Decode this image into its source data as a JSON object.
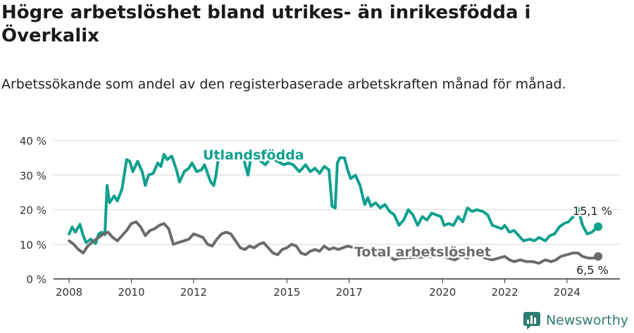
{
  "header": {
    "title": "Högre arbetslöshet bland utrikes- än inrikesfödda i Överkalix",
    "subtitle": "Arbetssökande som andel av den registerbaserade arbetskraften månad för månad."
  },
  "brand": {
    "name": "Newsworthy"
  },
  "colors": {
    "foreign_born": "#0fa08e",
    "total": "#6b6b6b",
    "grid": "#d9d9d9",
    "axis": "#333333",
    "brand": "#2f7d72"
  },
  "chart_data": {
    "type": "line",
    "xlim": [
      2007.5,
      2025.7
    ],
    "ylim": [
      0,
      40
    ],
    "y_ticks": [
      {
        "value": 0,
        "label": "0 %"
      },
      {
        "value": 10,
        "label": "10 %"
      },
      {
        "value": 20,
        "label": "20 %"
      },
      {
        "value": 30,
        "label": "30 %"
      },
      {
        "value": 40,
        "label": "40 %"
      }
    ],
    "x_ticks": [
      {
        "value": 2008,
        "label": "2008"
      },
      {
        "value": 2010,
        "label": "2010"
      },
      {
        "value": 2012,
        "label": "2012"
      },
      {
        "value": 2015,
        "label": "2015"
      },
      {
        "value": 2017,
        "label": "2017"
      },
      {
        "value": 2020,
        "label": "2020"
      },
      {
        "value": 2022,
        "label": "2022"
      },
      {
        "value": 2024,
        "label": "2024"
      }
    ],
    "grid": true,
    "series": [
      {
        "name": "Utlandsfödda",
        "color_key": "foreign_born",
        "end_label": "15,1 %",
        "end_value": 15.1,
        "points": [
          [
            2008.0,
            13.0
          ],
          [
            2008.1,
            15.0
          ],
          [
            2008.2,
            13.5
          ],
          [
            2008.35,
            15.8
          ],
          [
            2008.45,
            12.5
          ],
          [
            2008.55,
            10.5
          ],
          [
            2008.7,
            11.5
          ],
          [
            2008.85,
            10.2
          ],
          [
            2008.95,
            13.0
          ],
          [
            2009.05,
            13.5
          ],
          [
            2009.15,
            12.8
          ],
          [
            2009.22,
            27.0
          ],
          [
            2009.3,
            22.0
          ],
          [
            2009.45,
            24.0
          ],
          [
            2009.55,
            22.5
          ],
          [
            2009.7,
            26.0
          ],
          [
            2009.85,
            34.5
          ],
          [
            2009.95,
            34.0
          ],
          [
            2010.05,
            31.0
          ],
          [
            2010.2,
            34.0
          ],
          [
            2010.35,
            31.0
          ],
          [
            2010.45,
            27.0
          ],
          [
            2010.55,
            30.0
          ],
          [
            2010.7,
            30.5
          ],
          [
            2010.85,
            33.5
          ],
          [
            2010.95,
            32.5
          ],
          [
            2011.05,
            36.0
          ],
          [
            2011.15,
            34.5
          ],
          [
            2011.3,
            35.5
          ],
          [
            2011.45,
            31.5
          ],
          [
            2011.55,
            28.0
          ],
          [
            2011.7,
            31.0
          ],
          [
            2011.85,
            32.0
          ],
          [
            2011.95,
            33.5
          ],
          [
            2012.1,
            31.0
          ],
          [
            2012.25,
            31.5
          ],
          [
            2012.35,
            33.0
          ],
          [
            2012.45,
            30.5
          ],
          [
            2012.55,
            28.0
          ],
          [
            2012.65,
            27.0
          ],
          [
            2012.72,
            30.0
          ],
          [
            2012.8,
            35.0
          ],
          [
            2013.0,
            35.5
          ],
          [
            2013.2,
            36.0
          ],
          [
            2013.4,
            35.5
          ],
          [
            2013.6,
            35.0
          ],
          [
            2013.75,
            30.0
          ],
          [
            2013.85,
            35.5
          ],
          [
            2014.1,
            34.5
          ],
          [
            2014.3,
            33.0
          ],
          [
            2014.5,
            35.0
          ],
          [
            2014.7,
            34.0
          ],
          [
            2014.9,
            33.0
          ],
          [
            2015.05,
            33.5
          ],
          [
            2015.2,
            33.0
          ],
          [
            2015.4,
            31.0
          ],
          [
            2015.6,
            33.0
          ],
          [
            2015.75,
            31.0
          ],
          [
            2015.9,
            32.0
          ],
          [
            2016.05,
            30.5
          ],
          [
            2016.2,
            32.5
          ],
          [
            2016.35,
            31.5
          ],
          [
            2016.45,
            21.0
          ],
          [
            2016.55,
            20.5
          ],
          [
            2016.62,
            33.5
          ],
          [
            2016.7,
            35.0
          ],
          [
            2016.85,
            35.0
          ],
          [
            2016.95,
            31.5
          ],
          [
            2017.05,
            29.0
          ],
          [
            2017.2,
            30.0
          ],
          [
            2017.35,
            27.0
          ],
          [
            2017.5,
            21.5
          ],
          [
            2017.6,
            23.5
          ],
          [
            2017.7,
            21.0
          ],
          [
            2017.85,
            22.0
          ],
          [
            2018.0,
            20.5
          ],
          [
            2018.15,
            21.5
          ],
          [
            2018.3,
            19.5
          ],
          [
            2018.45,
            18.5
          ],
          [
            2018.6,
            15.5
          ],
          [
            2018.75,
            17.0
          ],
          [
            2018.9,
            20.0
          ],
          [
            2019.05,
            18.5
          ],
          [
            2019.2,
            15.5
          ],
          [
            2019.35,
            18.0
          ],
          [
            2019.5,
            17.0
          ],
          [
            2019.65,
            19.0
          ],
          [
            2019.8,
            18.5
          ],
          [
            2019.95,
            18.0
          ],
          [
            2020.05,
            15.5
          ],
          [
            2020.2,
            16.0
          ],
          [
            2020.35,
            15.5
          ],
          [
            2020.5,
            18.0
          ],
          [
            2020.65,
            16.5
          ],
          [
            2020.8,
            20.5
          ],
          [
            2020.95,
            19.5
          ],
          [
            2021.1,
            20.0
          ],
          [
            2021.3,
            19.5
          ],
          [
            2021.45,
            18.5
          ],
          [
            2021.6,
            15.5
          ],
          [
            2021.75,
            15.0
          ],
          [
            2021.9,
            14.5
          ],
          [
            2022.0,
            15.5
          ],
          [
            2022.15,
            13.5
          ],
          [
            2022.3,
            14.0
          ],
          [
            2022.45,
            12.5
          ],
          [
            2022.6,
            11.0
          ],
          [
            2022.8,
            11.5
          ],
          [
            2022.95,
            11.0
          ],
          [
            2023.1,
            12.0
          ],
          [
            2023.3,
            11.0
          ],
          [
            2023.45,
            12.5
          ],
          [
            2023.6,
            13.0
          ],
          [
            2023.75,
            15.0
          ],
          [
            2023.9,
            16.0
          ],
          [
            2024.05,
            16.5
          ],
          [
            2024.2,
            18.0
          ],
          [
            2024.35,
            20.5
          ],
          [
            2024.5,
            15.5
          ],
          [
            2024.65,
            13.0
          ],
          [
            2024.8,
            13.5
          ],
          [
            2025.0,
            15.1
          ]
        ]
      },
      {
        "name": "Total arbetslöshet",
        "color_key": "total",
        "end_label": "6,5 %",
        "end_value": 6.5,
        "points": [
          [
            2008.0,
            11.0
          ],
          [
            2008.15,
            10.0
          ],
          [
            2008.3,
            8.5
          ],
          [
            2008.45,
            7.5
          ],
          [
            2008.6,
            9.5
          ],
          [
            2008.8,
            11.0
          ],
          [
            2008.95,
            12.0
          ],
          [
            2009.1,
            13.0
          ],
          [
            2009.25,
            13.5
          ],
          [
            2009.4,
            12.0
          ],
          [
            2009.55,
            11.0
          ],
          [
            2009.7,
            12.5
          ],
          [
            2009.85,
            14.0
          ],
          [
            2010.0,
            16.0
          ],
          [
            2010.15,
            16.5
          ],
          [
            2010.3,
            15.0
          ],
          [
            2010.45,
            12.5
          ],
          [
            2010.6,
            14.0
          ],
          [
            2010.75,
            14.5
          ],
          [
            2010.9,
            15.5
          ],
          [
            2011.05,
            16.0
          ],
          [
            2011.2,
            14.5
          ],
          [
            2011.35,
            10.0
          ],
          [
            2011.5,
            10.5
          ],
          [
            2011.7,
            11.0
          ],
          [
            2011.85,
            11.5
          ],
          [
            2012.0,
            13.0
          ],
          [
            2012.15,
            12.5
          ],
          [
            2012.3,
            12.0
          ],
          [
            2012.45,
            10.0
          ],
          [
            2012.6,
            9.5
          ],
          [
            2012.75,
            11.5
          ],
          [
            2012.9,
            13.0
          ],
          [
            2013.05,
            13.5
          ],
          [
            2013.2,
            13.0
          ],
          [
            2013.35,
            11.0
          ],
          [
            2013.5,
            9.0
          ],
          [
            2013.65,
            8.5
          ],
          [
            2013.8,
            9.5
          ],
          [
            2013.95,
            9.0
          ],
          [
            2014.1,
            10.0
          ],
          [
            2014.25,
            10.5
          ],
          [
            2014.4,
            9.0
          ],
          [
            2014.55,
            7.5
          ],
          [
            2014.7,
            7.0
          ],
          [
            2014.85,
            8.5
          ],
          [
            2015.0,
            9.0
          ],
          [
            2015.15,
            10.0
          ],
          [
            2015.3,
            9.5
          ],
          [
            2015.45,
            7.5
          ],
          [
            2015.6,
            7.0
          ],
          [
            2015.75,
            8.0
          ],
          [
            2015.9,
            8.5
          ],
          [
            2016.05,
            8.0
          ],
          [
            2016.2,
            9.5
          ],
          [
            2016.35,
            8.5
          ],
          [
            2016.5,
            9.0
          ],
          [
            2016.65,
            8.5
          ],
          [
            2016.8,
            9.0
          ],
          [
            2016.95,
            9.5
          ],
          [
            2018.3,
            6.5
          ],
          [
            2018.45,
            5.5
          ],
          [
            2018.6,
            6.0
          ],
          [
            2019.8,
            6.5
          ],
          [
            2020.0,
            6.5
          ],
          [
            2020.2,
            6.0
          ],
          [
            2020.4,
            5.5
          ],
          [
            2020.6,
            6.5
          ],
          [
            2020.8,
            6.0
          ],
          [
            2021.0,
            7.0
          ],
          [
            2021.2,
            6.5
          ],
          [
            2021.4,
            6.0
          ],
          [
            2021.6,
            5.5
          ],
          [
            2021.8,
            6.0
          ],
          [
            2022.0,
            6.5
          ],
          [
            2022.15,
            5.5
          ],
          [
            2022.3,
            5.0
          ],
          [
            2022.5,
            5.5
          ],
          [
            2022.7,
            5.0
          ],
          [
            2022.9,
            5.0
          ],
          [
            2023.1,
            4.5
          ],
          [
            2023.3,
            5.5
          ],
          [
            2023.5,
            5.0
          ],
          [
            2023.65,
            5.5
          ],
          [
            2023.8,
            6.5
          ],
          [
            2024.0,
            7.0
          ],
          [
            2024.2,
            7.5
          ],
          [
            2024.35,
            7.5
          ],
          [
            2024.5,
            6.5
          ],
          [
            2024.7,
            6.0
          ],
          [
            2024.85,
            6.0
          ],
          [
            2025.0,
            6.5
          ]
        ]
      }
    ],
    "annotations": [
      {
        "text": "Utlandsfödda",
        "series": "Utlandsfödda"
      },
      {
        "text": "Total arbetslöshet",
        "series": "Total arbetslöshet"
      }
    ]
  }
}
